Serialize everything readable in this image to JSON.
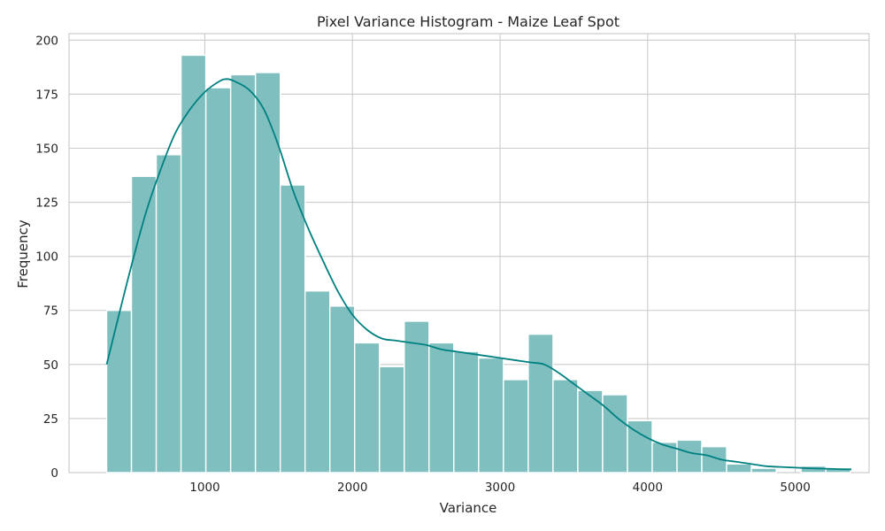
{
  "chart_data": {
    "type": "bar",
    "title": "Pixel Variance Histogram - Maize Leaf Spot",
    "xlabel": "Variance",
    "ylabel": "Frequency",
    "xlim": [
      80,
      5500
    ],
    "ylim": [
      0,
      203
    ],
    "x_ticks": [
      1000,
      2000,
      3000,
      4000,
      5000
    ],
    "y_ticks": [
      0,
      25,
      50,
      75,
      100,
      125,
      150,
      175,
      200
    ],
    "grid": true,
    "legend": "none",
    "bar_color": "#7fbfbf",
    "kde_color": "#008080",
    "bin_start": 335,
    "bin_width": 168,
    "bin_counts": [
      75,
      137,
      147,
      193,
      178,
      184,
      185,
      133,
      84,
      77,
      60,
      49,
      70,
      60,
      56,
      53,
      43,
      64,
      43,
      38,
      36,
      24,
      14,
      15,
      12,
      4,
      2,
      0,
      3,
      2
    ],
    "kde_curve": {
      "x": [
        335,
        400,
        500,
        600,
        700,
        800,
        900,
        1000,
        1100,
        1150,
        1200,
        1300,
        1400,
        1500,
        1600,
        1700,
        1800,
        1900,
        2000,
        2100,
        2200,
        2300,
        2400,
        2500,
        2600,
        2700,
        2800,
        2900,
        3000,
        3100,
        3200,
        3300,
        3400,
        3500,
        3600,
        3700,
        3800,
        3900,
        4000,
        4100,
        4200,
        4300,
        4400,
        4500,
        4600,
        4700,
        4800,
        4900,
        5000,
        5100,
        5200,
        5300,
        5380
      ],
      "y": [
        50,
        68,
        95,
        120,
        140,
        157,
        168,
        176,
        181,
        182,
        181,
        177,
        168,
        151,
        130,
        113,
        98,
        84,
        73,
        66,
        62,
        61,
        60,
        59,
        57,
        56,
        55,
        54,
        53,
        52,
        51,
        50,
        46,
        41,
        36,
        31,
        25,
        20,
        16,
        13,
        11,
        9,
        8,
        6,
        5,
        4,
        3,
        2.6,
        2.3,
        2,
        1.8,
        1.6,
        1.5
      ]
    }
  }
}
